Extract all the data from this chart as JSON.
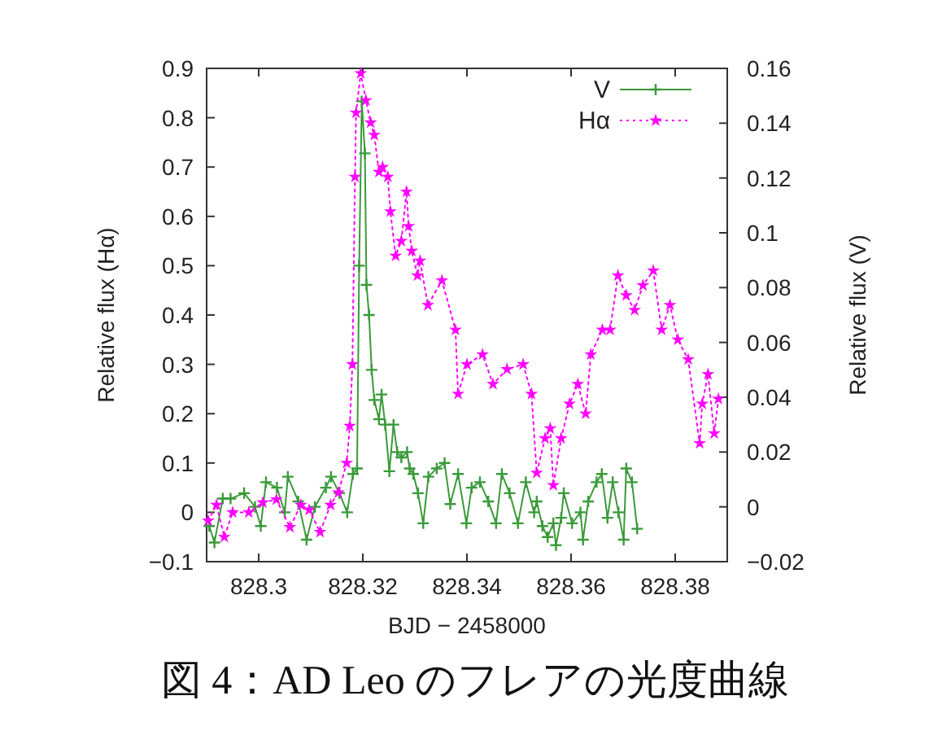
{
  "chart_data": {
    "type": "line",
    "xlabel": "BJD − 2458000",
    "ylabel": "Relative flux (Hα)",
    "y2label": "Relative flux (V)",
    "annotations": [
      "図 4：AD Leo のフレアの光度曲線"
    ],
    "xlim": [
      828.29,
      828.39
    ],
    "xticks": [
      828.3,
      828.32,
      828.34,
      828.36,
      828.38
    ],
    "ylim": [
      -0.1,
      0.9
    ],
    "yticks": [
      -0.1,
      0,
      0.1,
      0.2,
      0.3,
      0.4,
      0.5,
      0.6,
      0.7,
      0.8,
      0.9
    ],
    "y2lim": [
      -0.02,
      0.16
    ],
    "y2ticks": [
      -0.02,
      0,
      0.02,
      0.04,
      0.06,
      0.08,
      0.1,
      0.12,
      0.14,
      0.16
    ],
    "legend": "top right",
    "grid": false,
    "series": [
      {
        "name": "V",
        "color": "#3a9a3a",
        "axis": "y2",
        "marker": "cross",
        "line_style": "solid",
        "x": [
          828.2905,
          828.2915,
          828.2931,
          828.2946,
          828.2972,
          828.2993,
          828.3004,
          828.3014,
          828.3035,
          828.305,
          828.3056,
          828.3076,
          828.3092,
          828.3108,
          828.3129,
          828.3139,
          828.3155,
          828.317,
          828.3181,
          828.3189,
          828.3193,
          828.3198,
          828.3204,
          828.3207,
          828.3212,
          828.3217,
          828.3222,
          828.3231,
          828.3236,
          828.3243,
          828.3251,
          828.3259,
          828.3266,
          828.3274,
          828.3285,
          828.329,
          828.3297,
          828.3306,
          828.3316,
          828.3326,
          828.3342,
          828.3357,
          828.3368,
          828.3383,
          828.3399,
          828.3409,
          828.3425,
          828.3441,
          828.3456,
          828.3467,
          828.3482,
          828.3498,
          828.3513,
          828.3529,
          828.3534,
          828.3545,
          828.3555,
          828.3566,
          828.3571,
          828.3581,
          828.3586,
          828.3602,
          828.3618,
          828.3623,
          828.3633,
          828.3649,
          828.3659,
          828.367,
          828.368,
          828.3691,
          828.3701,
          828.3706,
          828.3717,
          828.3727
        ],
        "values": [
          -0.007,
          -0.013,
          0.003,
          0.003,
          0.005,
          0.0,
          -0.007,
          0.009,
          0.007,
          -0.002,
          0.011,
          0.002,
          -0.012,
          0.0,
          0.007,
          0.011,
          0.005,
          -0.002,
          0.012,
          0.014,
          0.088,
          0.148,
          0.129,
          0.081,
          0.07,
          0.05,
          0.039,
          0.032,
          0.041,
          0.03,
          0.013,
          0.03,
          0.02,
          0.018,
          0.02,
          0.014,
          0.012,
          0.005,
          -0.006,
          0.011,
          0.014,
          0.016,
          0.001,
          0.012,
          -0.006,
          0.007,
          0.009,
          0.002,
          -0.006,
          0.012,
          0.005,
          -0.006,
          0.009,
          -0.002,
          0.002,
          -0.007,
          -0.011,
          -0.006,
          -0.014,
          -0.004,
          0.005,
          -0.006,
          -0.002,
          -0.012,
          0.002,
          0.009,
          0.012,
          -0.004,
          0.009,
          -0.002,
          -0.012,
          0.014,
          0.009,
          -0.008
        ]
      },
      {
        "name": "Hα",
        "color": "#ff00ff",
        "axis": "y",
        "marker": "star",
        "line_style": "dotted",
        "x": [
          828.2903,
          828.2919,
          828.2934,
          828.295,
          828.2981,
          828.3008,
          828.3034,
          828.306,
          828.3081,
          828.3097,
          828.3118,
          828.3138,
          828.3153,
          828.3169,
          828.3175,
          828.318,
          828.3185,
          828.3187,
          828.3196,
          828.3206,
          828.3215,
          828.3222,
          828.3231,
          828.3238,
          828.3248,
          828.3253,
          828.3263,
          828.3274,
          828.3284,
          828.3288,
          828.3294,
          828.3305,
          828.331,
          828.3325,
          828.3352,
          828.3378,
          828.3383,
          828.34,
          828.343,
          828.345,
          828.3477,
          828.3508,
          828.3524,
          828.3534,
          828.355,
          828.356,
          828.3566,
          828.3581,
          828.3597,
          828.3613,
          828.3628,
          828.3638,
          828.366,
          828.3675,
          828.369,
          828.3706,
          828.3722,
          828.3738,
          828.3758,
          828.3774,
          828.379,
          828.3805,
          828.3825,
          828.3847,
          828.3852,
          828.3863,
          828.3875,
          828.3883
        ],
        "values": [
          -0.017,
          0.015,
          -0.05,
          0.0,
          0.0,
          0.02,
          0.026,
          -0.03,
          0.015,
          0.005,
          -0.04,
          0.015,
          0.04,
          0.1,
          0.175,
          0.3,
          0.68,
          0.81,
          0.89,
          0.835,
          0.79,
          0.765,
          0.69,
          0.7,
          0.68,
          0.61,
          0.52,
          0.55,
          0.65,
          0.58,
          0.53,
          0.48,
          0.51,
          0.42,
          0.47,
          0.37,
          0.24,
          0.3,
          0.32,
          0.26,
          0.29,
          0.3,
          0.24,
          0.08,
          0.15,
          0.17,
          0.055,
          0.15,
          0.22,
          0.26,
          0.2,
          0.32,
          0.37,
          0.37,
          0.48,
          0.44,
          0.41,
          0.46,
          0.49,
          0.37,
          0.42,
          0.35,
          0.31,
          0.14,
          0.22,
          0.28,
          0.16,
          0.23
        ]
      }
    ]
  }
}
